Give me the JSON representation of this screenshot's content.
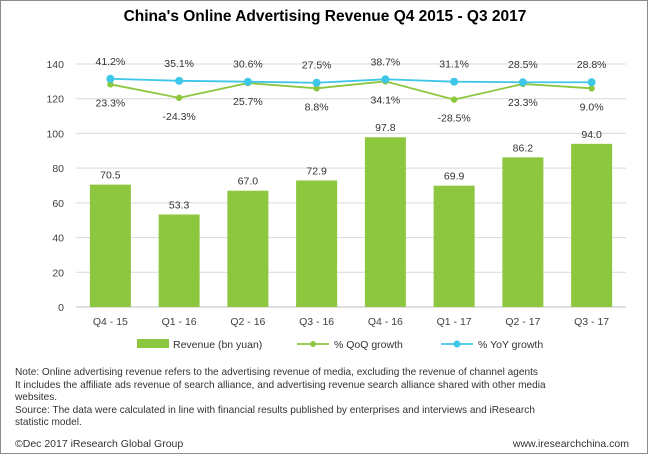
{
  "title": "China's Online Advertising Revenue Q4 2015 - Q3 2017",
  "chart_data": {
    "type": "bar",
    "title": "China's Online Advertising Revenue Q4 2015 - Q3 2017",
    "categories": [
      "Q4 - 15",
      "Q1 - 16",
      "Q2 - 16",
      "Q3 - 16",
      "Q4 - 16",
      "Q1 - 17",
      "Q2 - 17",
      "Q3 - 17"
    ],
    "ylim": [
      0,
      140
    ],
    "yticks": [
      0,
      20,
      40,
      60,
      80,
      100,
      120,
      140
    ],
    "grid": true,
    "legend_position": "bottom",
    "series": [
      {
        "name": "Revenue (bn yuan)",
        "kind": "bar",
        "color": "#8dc63f",
        "values": [
          70.5,
          53.3,
          67.0,
          72.9,
          97.8,
          69.9,
          86.2,
          94.0
        ],
        "labels": [
          "70.5",
          "53.3",
          "67.0",
          "72.9",
          "97.8",
          "69.9",
          "86.2",
          "94.0"
        ]
      },
      {
        "name": "% QoQ growth",
        "kind": "line",
        "color": "#8dc63f",
        "values": [
          23.3,
          -24.3,
          25.7,
          8.8,
          34.1,
          -28.5,
          23.3,
          9.0
        ],
        "labels": [
          "23.3%",
          "-24.3%",
          "25.7%",
          "8.8%",
          "34.1%",
          "-28.5%",
          "23.3%",
          "9.0%"
        ],
        "plot_y": [
          128.3,
          120.5,
          129.0,
          126.0,
          130.0,
          119.5,
          128.5,
          126.0
        ]
      },
      {
        "name": "% YoY growth",
        "kind": "line",
        "color": "#3ec6e8",
        "values": [
          41.2,
          35.1,
          30.6,
          27.5,
          38.7,
          31.1,
          28.5,
          28.8
        ],
        "labels": [
          "41.2%",
          "35.1%",
          "30.6%",
          "27.5%",
          "38.7%",
          "31.1%",
          "28.5%",
          "28.8%"
        ],
        "plot_y": [
          131.5,
          130.3,
          129.8,
          129.2,
          131.2,
          129.8,
          129.5,
          129.5
        ]
      }
    ]
  },
  "notes": {
    "line1": "Note:  Online advertising revenue refers to the advertising revenue  of media, excluding the revenue of channel agents",
    "line2": "It includes the affiliate ads revenue of search alliance, and advertising revenue search alliance shared with other media",
    "line3": "websites.",
    "line4": "Source: The data were calculated in line  with  financial  results  published by enterprises and interviews and iResearch",
    "line5": "statistic model."
  },
  "footer": {
    "copyright": "©Dec 2017 iResearch  Global Group",
    "website": "www.iresearchchina.com"
  }
}
